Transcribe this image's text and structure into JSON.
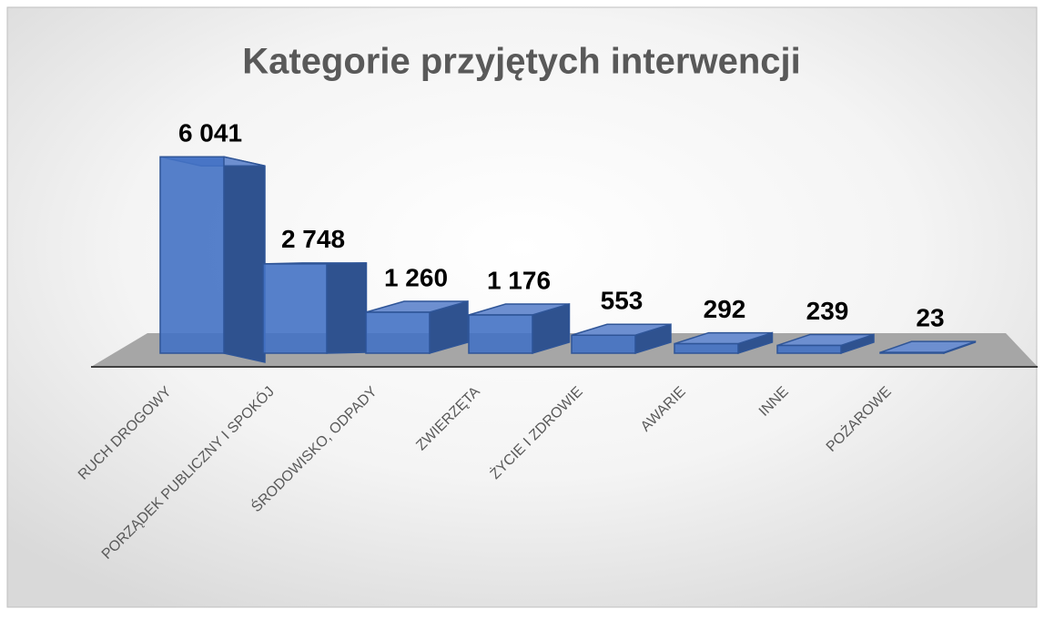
{
  "chart_data": {
    "type": "bar3d",
    "title": "Kategorie przyjętych interwencji",
    "categories": [
      "RUCH DROGOWY",
      "PORZĄDEK PUBLICZNY I SPOKÓJ",
      "ŚRODOWISKO, ODPADY",
      "ZWIERZĘTA",
      "ŻYCIE I ZDROWIE",
      "AWARIE",
      "INNE",
      "POŻAROWE"
    ],
    "values": [
      6041,
      2748,
      1260,
      1176,
      553,
      292,
      239,
      23
    ],
    "value_labels": [
      "6 041",
      "2 748",
      "1 260",
      "1 176",
      "553",
      "292",
      "239",
      "23"
    ],
    "color": "#4472c4",
    "ylim": [
      0,
      7000
    ]
  }
}
